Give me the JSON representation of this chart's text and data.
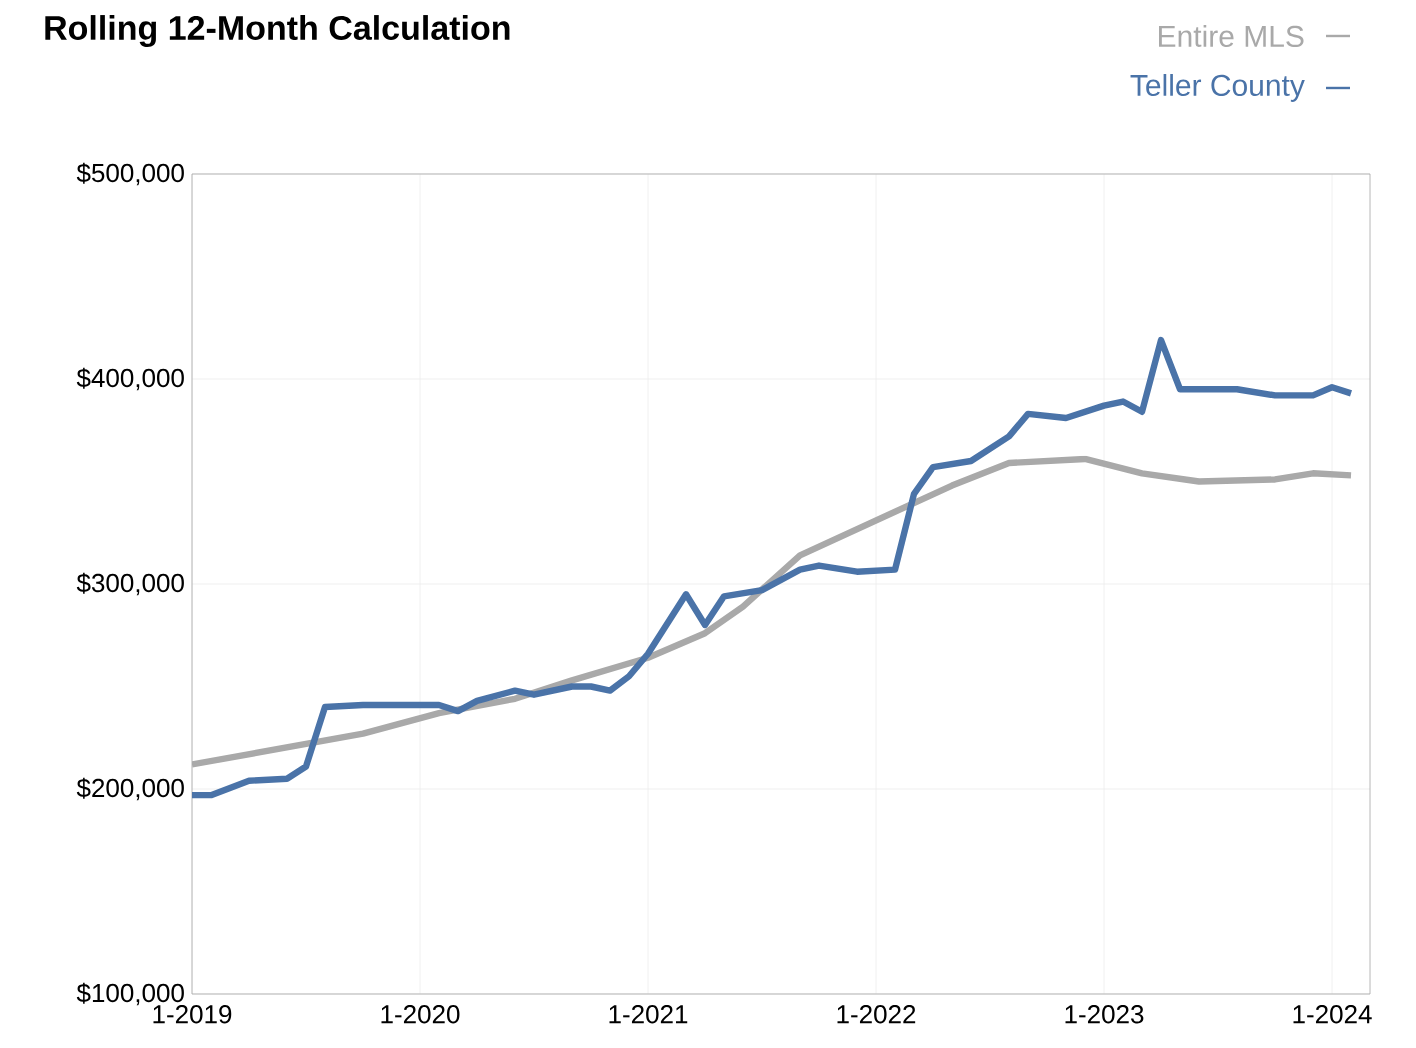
{
  "chart_data": {
    "type": "line",
    "title": "Rolling 12-Month Calculation",
    "xlim": [
      "2019-01",
      "2024-03"
    ],
    "xticks": [
      {
        "value": "2019-01",
        "label": "1-2019"
      },
      {
        "value": "2020-01",
        "label": "1-2020"
      },
      {
        "value": "2021-01",
        "label": "1-2021"
      },
      {
        "value": "2022-01",
        "label": "1-2022"
      },
      {
        "value": "2023-01",
        "label": "1-2023"
      },
      {
        "value": "2024-01",
        "label": "1-2024"
      }
    ],
    "ylim": [
      100000,
      500000
    ],
    "yticks": [
      {
        "value": 100000,
        "label": "$100,000"
      },
      {
        "value": 200000,
        "label": "$200,000"
      },
      {
        "value": 300000,
        "label": "$300,000"
      },
      {
        "value": 400000,
        "label": "$400,000"
      },
      {
        "value": 500000,
        "label": "$500,000"
      }
    ],
    "grid": true,
    "legend": "top right",
    "marker": "none",
    "line_style": "solid",
    "series": [
      {
        "name": "Entire MLS",
        "color": "#a9a9a9",
        "x": [
          "2019-01",
          "2019-04",
          "2019-07",
          "2019-10",
          "2020-02",
          "2020-06",
          "2020-09",
          "2021-01",
          "2021-04",
          "2021-06",
          "2021-09",
          "2022-01",
          "2022-05",
          "2022-08",
          "2022-12",
          "2023-03",
          "2023-06",
          "2023-10",
          "2023-12",
          "2024-02"
        ],
        "values": [
          212000,
          217000,
          222000,
          227000,
          237000,
          244000,
          253000,
          264000,
          276000,
          289000,
          314000,
          331000,
          348000,
          359000,
          361000,
          354000,
          350000,
          351000,
          354000,
          353000
        ]
      },
      {
        "name": "Teller County",
        "color": "#4a73a8",
        "x": [
          "2019-01",
          "2019-02",
          "2019-04",
          "2019-06",
          "2019-07",
          "2019-08",
          "2019-10",
          "2020-02",
          "2020-03",
          "2020-04",
          "2020-06",
          "2020-07",
          "2020-09",
          "2020-10",
          "2020-11",
          "2020-12",
          "2021-01",
          "2021-03",
          "2021-04",
          "2021-05",
          "2021-07",
          "2021-09",
          "2021-10",
          "2021-12",
          "2022-02",
          "2022-03",
          "2022-04",
          "2022-06",
          "2022-08",
          "2022-09",
          "2022-11",
          "2023-01",
          "2023-02",
          "2023-03",
          "2023-04",
          "2023-05",
          "2023-08",
          "2023-10",
          "2023-12",
          "2024-01",
          "2024-02"
        ],
        "values": [
          197000,
          197000,
          204000,
          205000,
          211000,
          240000,
          241000,
          241000,
          238000,
          243000,
          248000,
          246000,
          250000,
          250000,
          248000,
          255000,
          266000,
          295000,
          280000,
          294000,
          297000,
          307000,
          309000,
          306000,
          307000,
          344000,
          357000,
          360000,
          372000,
          383000,
          381000,
          387000,
          389000,
          384000,
          419000,
          395000,
          395000,
          392000,
          392000,
          396000,
          393000
        ]
      }
    ]
  }
}
